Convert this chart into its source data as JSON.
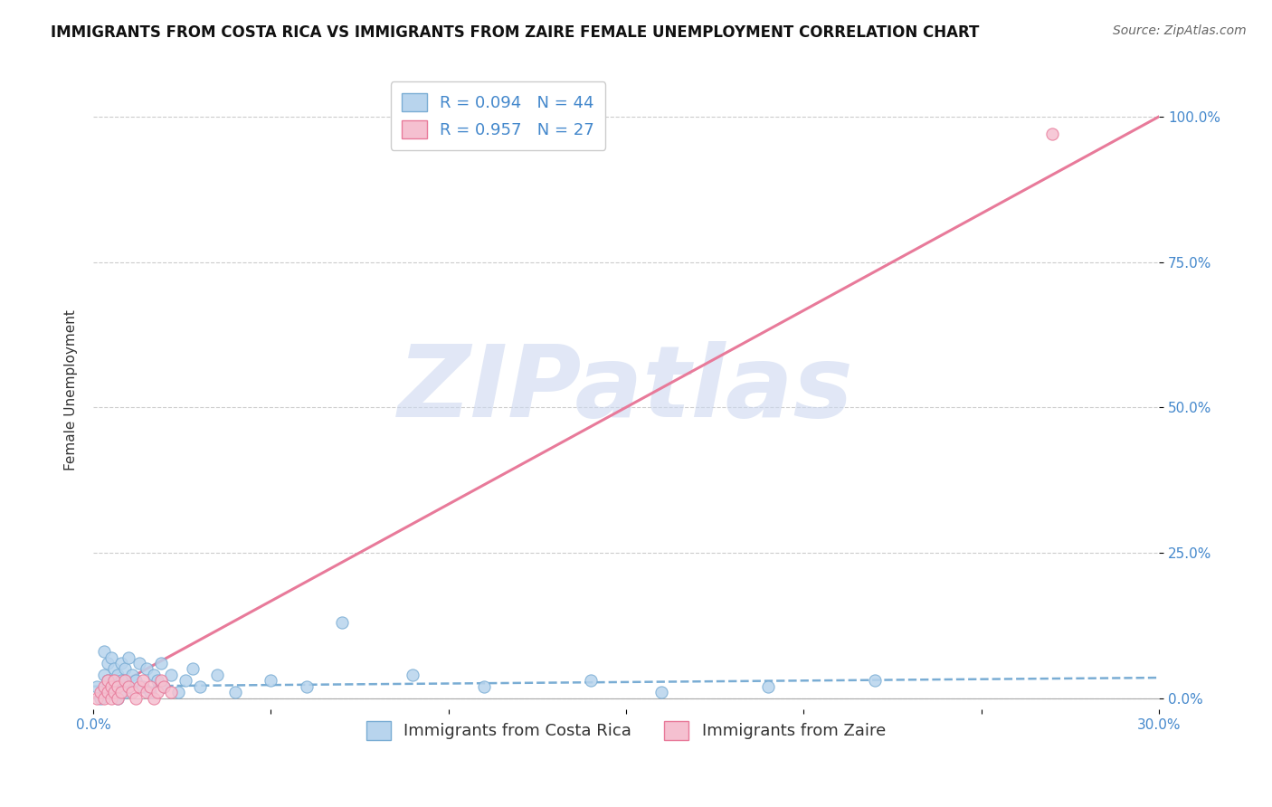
{
  "title": "IMMIGRANTS FROM COSTA RICA VS IMMIGRANTS FROM ZAIRE FEMALE UNEMPLOYMENT CORRELATION CHART",
  "source": "Source: ZipAtlas.com",
  "ylabel": "Female Unemployment",
  "xlim": [
    0.0,
    0.3
  ],
  "ylim": [
    -0.02,
    1.08
  ],
  "ytick_labels": [
    "0.0%",
    "25.0%",
    "50.0%",
    "75.0%",
    "100.0%"
  ],
  "ytick_values": [
    0.0,
    0.25,
    0.5,
    0.75,
    1.0
  ],
  "xtick_values": [
    0.0,
    0.05,
    0.1,
    0.15,
    0.2,
    0.25,
    0.3
  ],
  "costa_rica_color": "#b8d4ed",
  "costa_rica_edge": "#7aadd4",
  "zaire_color": "#f5c0d0",
  "zaire_edge": "#e87a9a",
  "line_costa_rica_color": "#7aadd4",
  "line_zaire_color": "#e87a9a",
  "legend_label_r_costa_rica": "R = 0.094   N = 44",
  "legend_label_r_zaire": "R = 0.957   N = 27",
  "legend_label_costa_rica": "Immigrants from Costa Rica",
  "legend_label_zaire": "Immigrants from Zaire",
  "watermark": "ZIPatlas",
  "watermark_color": "#cdd8f0",
  "costa_rica_x": [
    0.001,
    0.002,
    0.003,
    0.003,
    0.004,
    0.004,
    0.005,
    0.005,
    0.006,
    0.006,
    0.007,
    0.007,
    0.008,
    0.008,
    0.009,
    0.009,
    0.01,
    0.01,
    0.011,
    0.012,
    0.013,
    0.014,
    0.015,
    0.016,
    0.017,
    0.018,
    0.019,
    0.02,
    0.022,
    0.024,
    0.026,
    0.028,
    0.03,
    0.035,
    0.04,
    0.05,
    0.06,
    0.07,
    0.09,
    0.11,
    0.14,
    0.16,
    0.19,
    0.22
  ],
  "costa_rica_y": [
    0.02,
    0.0,
    0.04,
    0.08,
    0.03,
    0.06,
    0.01,
    0.07,
    0.02,
    0.05,
    0.0,
    0.04,
    0.03,
    0.06,
    0.01,
    0.05,
    0.02,
    0.07,
    0.04,
    0.03,
    0.06,
    0.02,
    0.05,
    0.01,
    0.04,
    0.03,
    0.06,
    0.02,
    0.04,
    0.01,
    0.03,
    0.05,
    0.02,
    0.04,
    0.01,
    0.03,
    0.02,
    0.13,
    0.04,
    0.02,
    0.03,
    0.01,
    0.02,
    0.03
  ],
  "zaire_x": [
    0.001,
    0.002,
    0.003,
    0.003,
    0.004,
    0.004,
    0.005,
    0.005,
    0.006,
    0.006,
    0.007,
    0.007,
    0.008,
    0.009,
    0.01,
    0.011,
    0.012,
    0.013,
    0.014,
    0.015,
    0.016,
    0.017,
    0.018,
    0.019,
    0.02,
    0.022,
    0.27
  ],
  "zaire_y": [
    0.0,
    0.01,
    0.0,
    0.02,
    0.01,
    0.03,
    0.0,
    0.02,
    0.01,
    0.03,
    0.02,
    0.0,
    0.01,
    0.03,
    0.02,
    0.01,
    0.0,
    0.02,
    0.03,
    0.01,
    0.02,
    0.0,
    0.01,
    0.03,
    0.02,
    0.01,
    0.97
  ],
  "costa_rica_line_x": [
    0.0,
    0.3
  ],
  "costa_rica_line_y": [
    0.02,
    0.035
  ],
  "zaire_line_x": [
    0.0,
    0.3
  ],
  "zaire_line_y": [
    0.0,
    1.0
  ],
  "title_fontsize": 12,
  "source_fontsize": 10,
  "axis_label_fontsize": 11,
  "tick_fontsize": 11,
  "legend_fontsize": 13,
  "marker_size": 90,
  "background_color": "#ffffff",
  "grid_color": "#cccccc",
  "tick_color": "#4488cc"
}
